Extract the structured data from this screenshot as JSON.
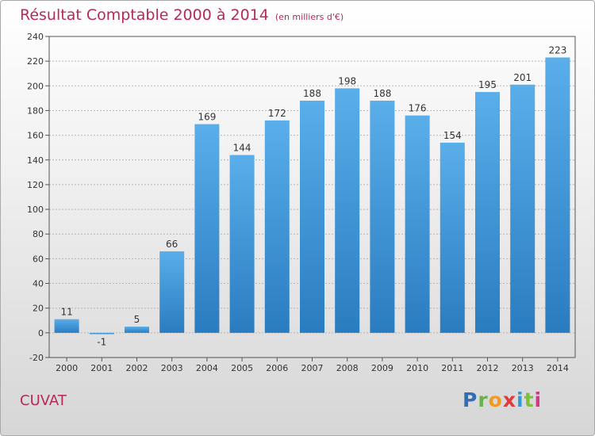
{
  "header": {
    "title": "Résultat Comptable 2000 à 2014",
    "subtitle": "(en milliers d'€)"
  },
  "place": "CUVAT",
  "logo_letters": [
    "P",
    "r",
    "o",
    "x",
    "i",
    "t",
    "i"
  ],
  "colors": {
    "title": "#b42a59",
    "bar_top": "#5aaeea",
    "bar_bottom": "#2a7cc0"
  },
  "chart_data": {
    "type": "bar",
    "categories": [
      "2000",
      "2001",
      "2002",
      "2003",
      "2004",
      "2005",
      "2006",
      "2007",
      "2008",
      "2009",
      "2010",
      "2011",
      "2012",
      "2013",
      "2014"
    ],
    "values": [
      11,
      -1,
      5,
      66,
      169,
      144,
      172,
      188,
      198,
      188,
      176,
      154,
      195,
      201,
      223
    ],
    "data_labels": [
      "11",
      "-1",
      "5",
      "66",
      "169",
      "144",
      "172",
      "188",
      "198",
      "188",
      "176",
      "154",
      "195",
      "201",
      "223"
    ],
    "ylim": [
      -20,
      240
    ],
    "yticks": [
      -20,
      0,
      20,
      40,
      60,
      80,
      100,
      120,
      140,
      160,
      180,
      200,
      220,
      240
    ],
    "ytick_labels": [
      "-20",
      "0",
      "20",
      "40",
      "60",
      "80",
      "100",
      "120",
      "140",
      "160",
      "180",
      "200",
      "220",
      "240"
    ],
    "grid": true,
    "title": "Résultat Comptable 2000 à 2014",
    "xlabel": "",
    "ylabel": ""
  }
}
